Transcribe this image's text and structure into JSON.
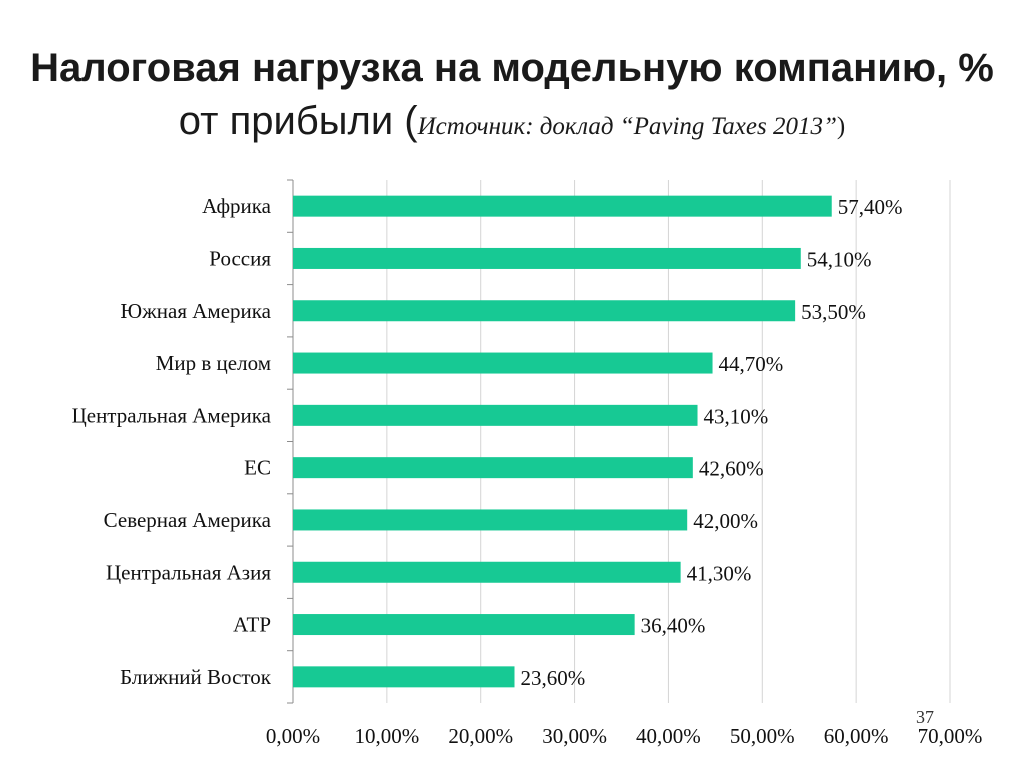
{
  "title": {
    "line1": "Налоговая нагрузка на модельную компанию, %",
    "line2_main": "от прибыли (",
    "line2_source": "Источник: доклад “Paving Taxes 2013”",
    "line2_close": ")"
  },
  "slide_number": "37",
  "colors": {
    "bar": "#17c994",
    "grid": "#d4d4d4",
    "axis": "#8c8c8c"
  },
  "chart_data": {
    "type": "bar",
    "orientation": "horizontal",
    "categories": [
      "Африка",
      "Россия",
      "Южная Америка",
      "Мир в целом",
      "Центральная Америка",
      "ЕС",
      "Северная Америка",
      "Центральная Азия",
      "АТР",
      "Ближний Восток"
    ],
    "values": [
      57.4,
      54.1,
      53.5,
      44.7,
      43.1,
      42.6,
      42.0,
      41.3,
      36.4,
      23.6
    ],
    "data_labels": [
      "57,40%",
      "54,10%",
      "53,50%",
      "44,70%",
      "43,10%",
      "42,60%",
      "42,00%",
      "41,30%",
      "36,40%",
      "23,60%"
    ],
    "x_ticks": [
      0,
      10,
      20,
      30,
      40,
      50,
      60,
      70
    ],
    "x_tick_labels": [
      "0,00%",
      "10,00%",
      "20,00%",
      "30,00%",
      "40,00%",
      "50,00%",
      "60,00%",
      "70,00%"
    ],
    "xlim": [
      0,
      70
    ],
    "grid": true,
    "legend": "none"
  }
}
